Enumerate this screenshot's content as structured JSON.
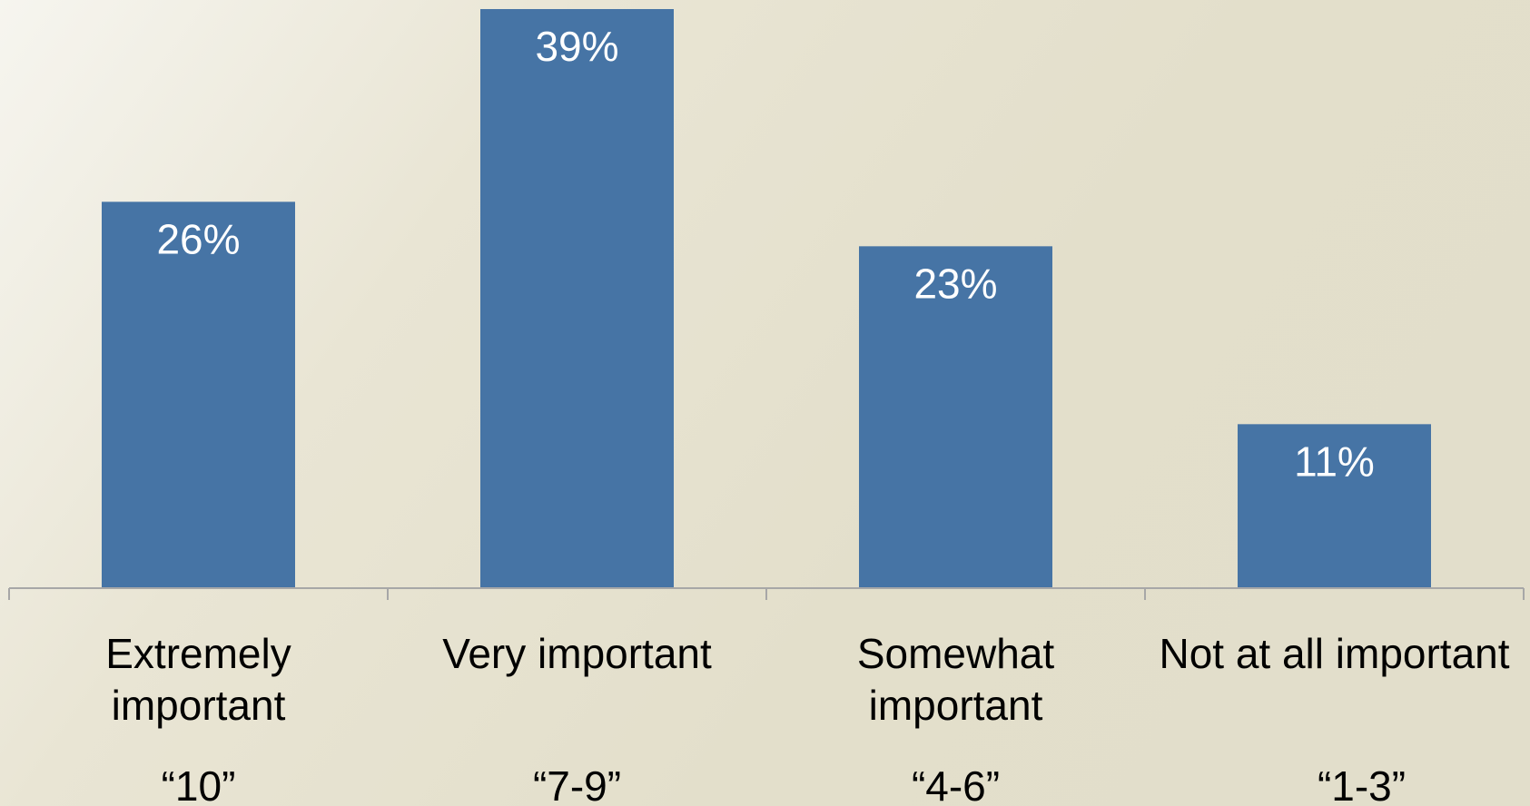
{
  "chart_data": {
    "type": "bar",
    "categories": [
      [
        "Extremely",
        "important"
      ],
      [
        "Very important"
      ],
      [
        "Somewhat",
        "important"
      ],
      [
        "Not at all important"
      ]
    ],
    "sublabels": [
      "“10”",
      "“7-9”",
      "“4-6”",
      "“1-3”"
    ],
    "values": [
      26,
      39,
      23,
      11
    ],
    "value_labels": [
      "26%",
      "39%",
      "23%",
      "11%"
    ],
    "ylim": [
      0,
      39
    ],
    "grid": false,
    "legend": "none",
    "colors": {
      "bar": "#4674a5",
      "value_label": "#ffffff",
      "axis": "#a7a7a7"
    }
  }
}
